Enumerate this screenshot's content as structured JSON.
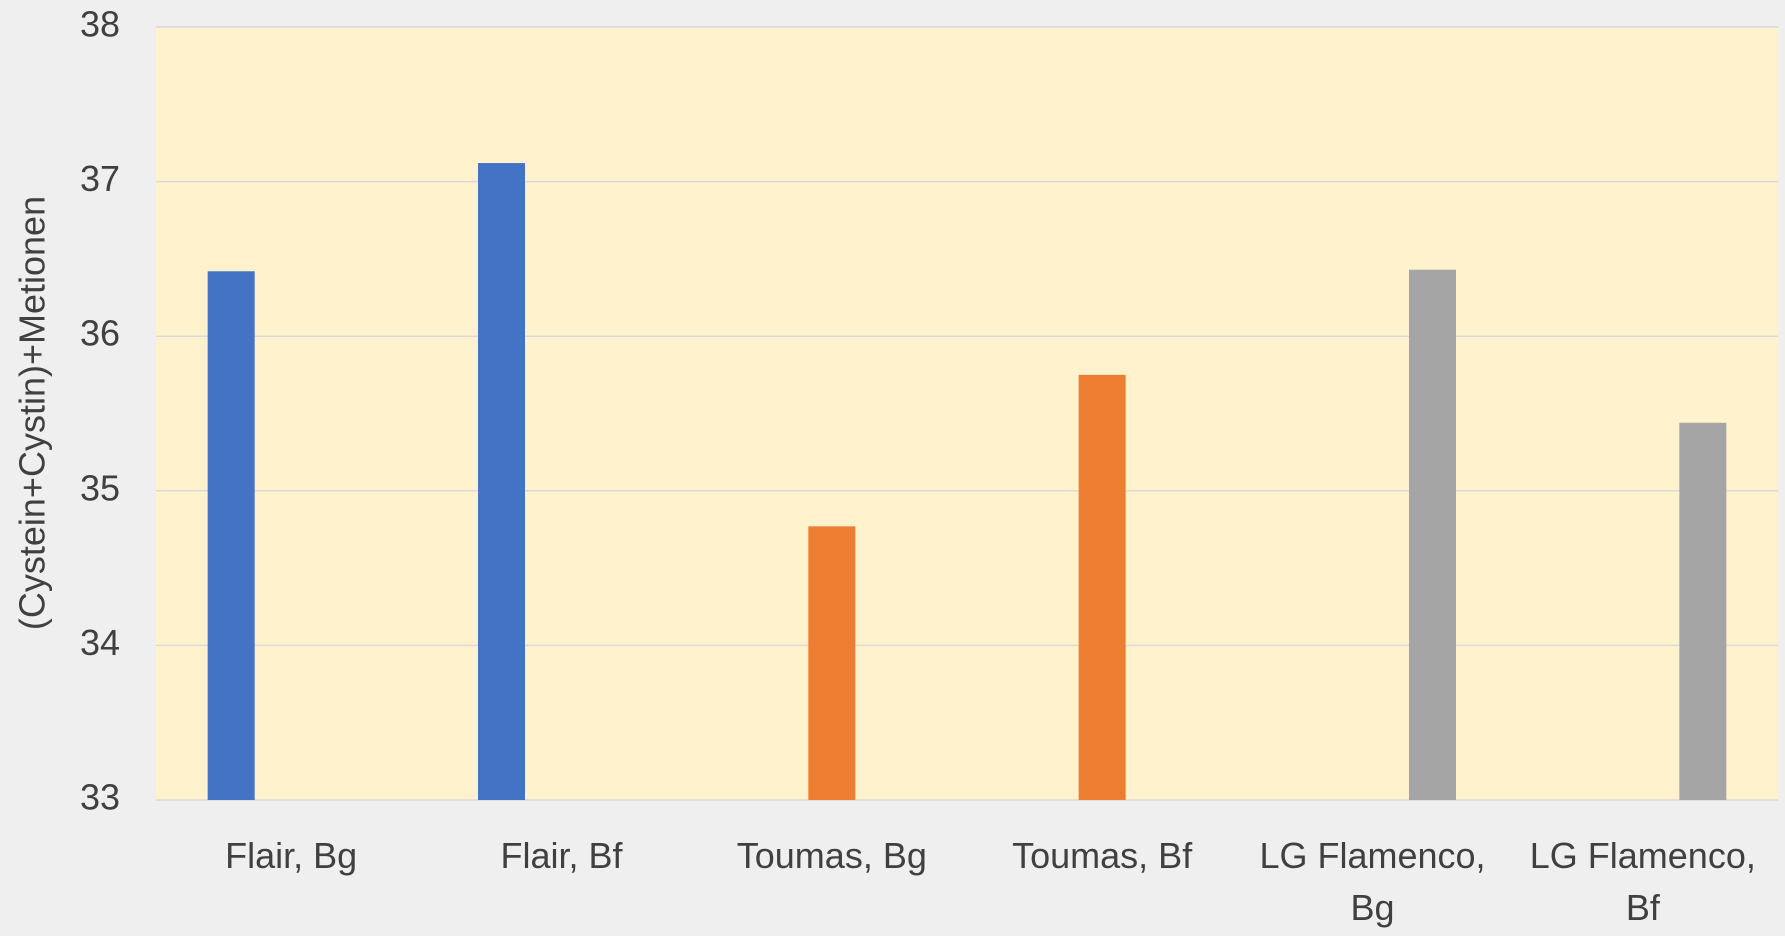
{
  "chart_data": {
    "type": "bar",
    "categories": [
      "Flair, Bg",
      "Flair, Bf",
      "Toumas, Bg",
      "Toumas, Bf",
      "LG Flamenco, Bg",
      "LG Flamenco, Bf"
    ],
    "series": [
      {
        "color": "#4472c4",
        "values": [
          36.42,
          37.12,
          null,
          null,
          null,
          null
        ]
      },
      {
        "color": "#ed7d31",
        "values": [
          null,
          null,
          34.77,
          35.75,
          null,
          null
        ]
      },
      {
        "color": "#a5a5a5",
        "values": [
          null,
          null,
          null,
          null,
          36.43,
          35.44
        ]
      }
    ],
    "ylabel": "(Cystein+Cystin)+Metionen",
    "ylim": [
      33,
      38
    ],
    "yticks": [
      33,
      34,
      35,
      36,
      37,
      38
    ],
    "grid": true,
    "plot_background": "#fff2cc"
  }
}
